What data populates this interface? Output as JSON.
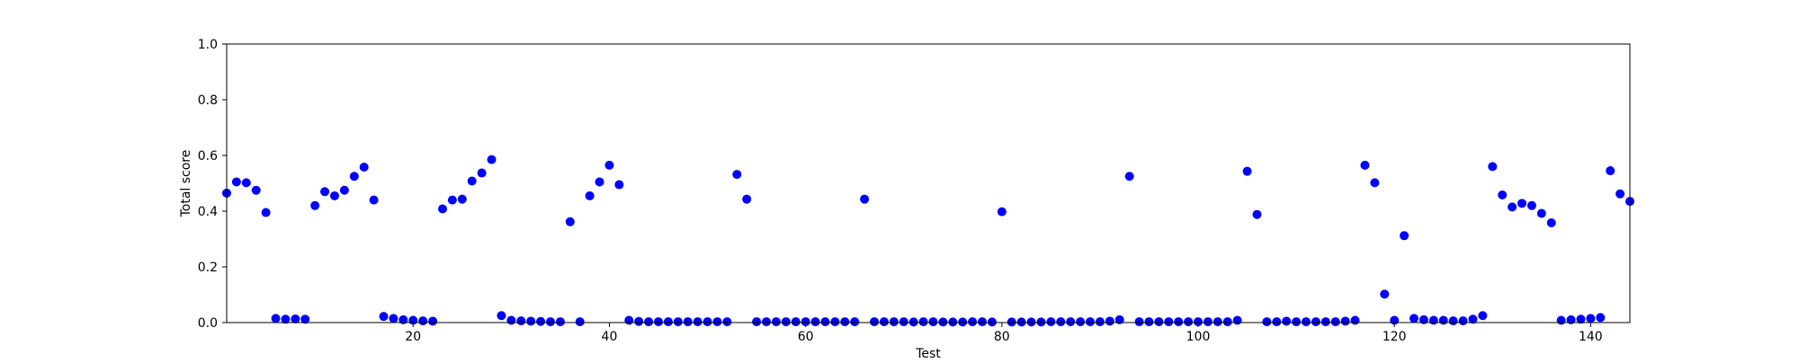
{
  "chart_data": {
    "type": "scatter",
    "title": "",
    "xlabel": "Test",
    "ylabel": "Total score",
    "xlim": [
      1,
      144
    ],
    "ylim": [
      0.0,
      1.0
    ],
    "xticks": [
      20,
      40,
      60,
      80,
      100,
      120,
      140
    ],
    "xtick_labels": [
      "20",
      "40",
      "60",
      "80",
      "100",
      "120",
      "140"
    ],
    "yticks": [
      0.0,
      0.2,
      0.4,
      0.6,
      0.8,
      1.0
    ],
    "ytick_labels": [
      "0.0",
      "0.2",
      "0.4",
      "0.6",
      "0.8",
      "1.0"
    ],
    "grid": false,
    "legend": "none",
    "marker_color": "#0000ff",
    "series": [
      {
        "points": [
          [
            1,
            0.465
          ],
          [
            2,
            0.505
          ],
          [
            3,
            0.502
          ],
          [
            4,
            0.475
          ],
          [
            5,
            0.395
          ],
          [
            6,
            0.015
          ],
          [
            7,
            0.012
          ],
          [
            8,
            0.013
          ],
          [
            9,
            0.012
          ],
          [
            10,
            0.42
          ],
          [
            11,
            0.47
          ],
          [
            12,
            0.455
          ],
          [
            13,
            0.475
          ],
          [
            14,
            0.525
          ],
          [
            15,
            0.558
          ],
          [
            16,
            0.44
          ],
          [
            17,
            0.022
          ],
          [
            18,
            0.015
          ],
          [
            19,
            0.01
          ],
          [
            20,
            0.008
          ],
          [
            21,
            0.006
          ],
          [
            22,
            0.005
          ],
          [
            23,
            0.408
          ],
          [
            24,
            0.44
          ],
          [
            25,
            0.443
          ],
          [
            26,
            0.508
          ],
          [
            27,
            0.537
          ],
          [
            28,
            0.585
          ],
          [
            29,
            0.025
          ],
          [
            30,
            0.008
          ],
          [
            31,
            0.006
          ],
          [
            32,
            0.005
          ],
          [
            33,
            0.004
          ],
          [
            34,
            0.003
          ],
          [
            35,
            0.003
          ],
          [
            36,
            0.362
          ],
          [
            37,
            0.003
          ],
          [
            38,
            0.455
          ],
          [
            39,
            0.505
          ],
          [
            40,
            0.565
          ],
          [
            41,
            0.495
          ],
          [
            42,
            0.008
          ],
          [
            43,
            0.004
          ],
          [
            44,
            0.003
          ],
          [
            45,
            0.003
          ],
          [
            46,
            0.003
          ],
          [
            47,
            0.003
          ],
          [
            48,
            0.003
          ],
          [
            49,
            0.003
          ],
          [
            50,
            0.003
          ],
          [
            51,
            0.003
          ],
          [
            52,
            0.003
          ],
          [
            53,
            0.532
          ],
          [
            54,
            0.443
          ],
          [
            55,
            0.003
          ],
          [
            56,
            0.003
          ],
          [
            57,
            0.003
          ],
          [
            58,
            0.003
          ],
          [
            59,
            0.003
          ],
          [
            60,
            0.003
          ],
          [
            61,
            0.003
          ],
          [
            62,
            0.003
          ],
          [
            63,
            0.003
          ],
          [
            64,
            0.003
          ],
          [
            65,
            0.003
          ],
          [
            66,
            0.443
          ],
          [
            67,
            0.003
          ],
          [
            68,
            0.003
          ],
          [
            69,
            0.003
          ],
          [
            70,
            0.003
          ],
          [
            71,
            0.002
          ],
          [
            72,
            0.003
          ],
          [
            73,
            0.003
          ],
          [
            74,
            0.002
          ],
          [
            75,
            0.002
          ],
          [
            76,
            0.002
          ],
          [
            77,
            0.003
          ],
          [
            78,
            0.003
          ],
          [
            79,
            0.002
          ],
          [
            80,
            0.398
          ],
          [
            81,
            0.002
          ],
          [
            82,
            0.002
          ],
          [
            83,
            0.002
          ],
          [
            84,
            0.002
          ],
          [
            85,
            0.003
          ],
          [
            86,
            0.003
          ],
          [
            87,
            0.003
          ],
          [
            88,
            0.003
          ],
          [
            89,
            0.003
          ],
          [
            90,
            0.003
          ],
          [
            91,
            0.005
          ],
          [
            92,
            0.01
          ],
          [
            93,
            0.525
          ],
          [
            94,
            0.003
          ],
          [
            95,
            0.003
          ],
          [
            96,
            0.003
          ],
          [
            97,
            0.003
          ],
          [
            98,
            0.003
          ],
          [
            99,
            0.003
          ],
          [
            100,
            0.003
          ],
          [
            101,
            0.003
          ],
          [
            102,
            0.003
          ],
          [
            103,
            0.003
          ],
          [
            104,
            0.008
          ],
          [
            105,
            0.543
          ],
          [
            106,
            0.388
          ],
          [
            107,
            0.003
          ],
          [
            108,
            0.003
          ],
          [
            109,
            0.005
          ],
          [
            110,
            0.003
          ],
          [
            111,
            0.003
          ],
          [
            112,
            0.003
          ],
          [
            113,
            0.003
          ],
          [
            114,
            0.003
          ],
          [
            115,
            0.005
          ],
          [
            116,
            0.008
          ],
          [
            117,
            0.565
          ],
          [
            118,
            0.502
          ],
          [
            119,
            0.102
          ],
          [
            120,
            0.008
          ],
          [
            121,
            0.312
          ],
          [
            122,
            0.015
          ],
          [
            123,
            0.01
          ],
          [
            124,
            0.008
          ],
          [
            125,
            0.008
          ],
          [
            126,
            0.006
          ],
          [
            127,
            0.006
          ],
          [
            128,
            0.012
          ],
          [
            129,
            0.025
          ],
          [
            130,
            0.56
          ],
          [
            131,
            0.458
          ],
          [
            132,
            0.415
          ],
          [
            133,
            0.428
          ],
          [
            134,
            0.42
          ],
          [
            135,
            0.392
          ],
          [
            136,
            0.358
          ],
          [
            137,
            0.008
          ],
          [
            138,
            0.01
          ],
          [
            139,
            0.012
          ],
          [
            140,
            0.015
          ],
          [
            141,
            0.018
          ],
          [
            142,
            0.545
          ],
          [
            143,
            0.462
          ],
          [
            144,
            0.435
          ]
        ]
      }
    ]
  }
}
